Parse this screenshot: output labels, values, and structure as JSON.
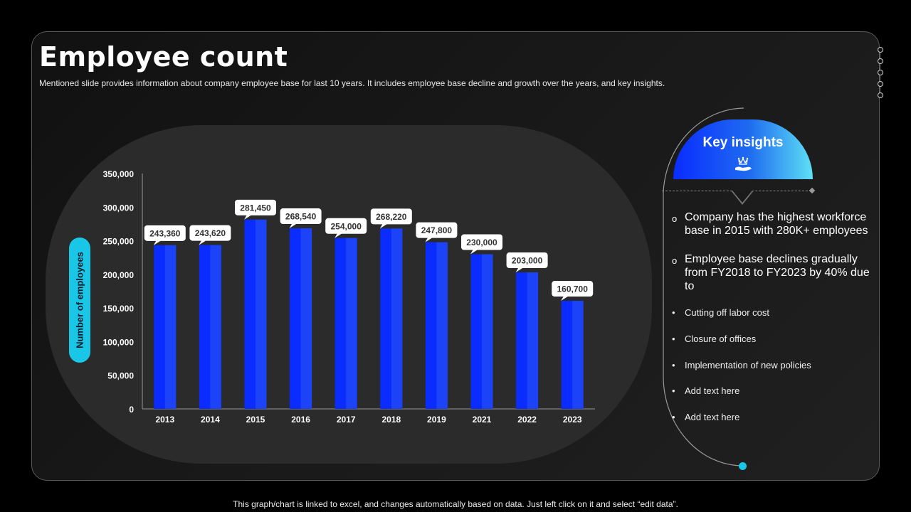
{
  "title": "Employee count",
  "subtitle": "Mentioned slide provides information about company employee base for last 10 years. It includes employee base decline and growth over the years, and key insights.",
  "footer": "This graph/chart is linked to excel, and changes automatically based on data. Just left click on it and select “edit data”.",
  "colors": {
    "bar": "#0a2cff",
    "bar_highlight": "#2b57f0",
    "accent": "#19c6e6"
  },
  "chart_data": {
    "type": "bar",
    "title": "",
    "xlabel": "",
    "ylabel": "Number of employees",
    "categories": [
      "2013",
      "2014",
      "2015",
      "2016",
      "2017",
      "2018",
      "2019",
      "2021",
      "2022",
      "2023"
    ],
    "values": [
      243360,
      243620,
      281450,
      268540,
      254000,
      268220,
      247800,
      230000,
      203000,
      160700
    ],
    "value_labels": [
      "243,360",
      "243,620",
      "281,450",
      "268,540",
      "254,000",
      "268,220",
      "247,800",
      "230,000",
      "203,000",
      "160,700"
    ],
    "yticks": [
      "0",
      "50,000",
      "100,000",
      "150,000",
      "200,000",
      "250,000",
      "300,000",
      "350,000"
    ],
    "ylim": [
      0,
      350000
    ]
  },
  "insights": {
    "title": "Key insights",
    "icon": "hand-crown-icon",
    "points": [
      "Company has the highest workforce base in 2015 with 280K+ employees",
      "Employee base declines gradually from FY2018 to FY2023 by 40% due to"
    ],
    "reasons": [
      "Cutting off labor cost",
      "Closure of offices",
      "Implementation of new policies",
      "Add text here",
      "Add text here"
    ]
  }
}
